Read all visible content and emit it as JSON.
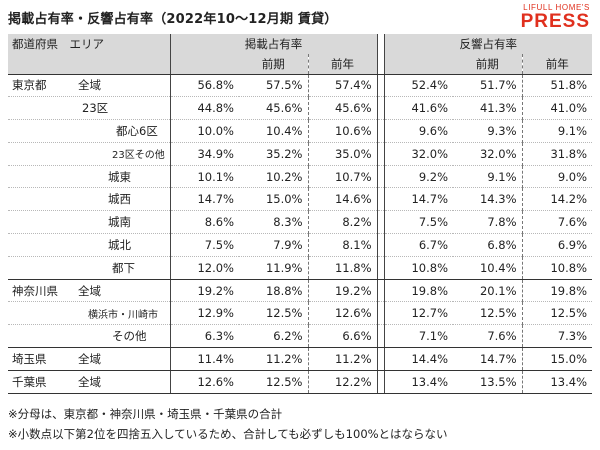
{
  "title": "掲載占有率・反響占有率（2022年10〜12月期 賃貸）",
  "logo": {
    "top": "LIFULL HOME'S",
    "main": "PRESS"
  },
  "header": {
    "pref_area": "都道府県　エリア",
    "listing_group": "掲載占有率",
    "response_group": "反響占有率",
    "sub": [
      "前期",
      "前年",
      "前期",
      "前年"
    ]
  },
  "rows": [
    {
      "pref": "東京都",
      "area": "全域",
      "values": [
        "56.8%",
        "57.5%",
        "57.4%",
        "52.4%",
        "51.7%",
        "51.8%"
      ]
    },
    {
      "pref": "",
      "area": "23区",
      "values": [
        "44.8%",
        "45.6%",
        "45.6%",
        "41.6%",
        "41.3%",
        "41.0%"
      ]
    },
    {
      "pref": "",
      "area": "都心6区",
      "values": [
        "10.0%",
        "10.4%",
        "10.6%",
        "9.6%",
        "9.3%",
        "9.1%"
      ]
    },
    {
      "pref": "",
      "area": "23区その他",
      "values": [
        "34.9%",
        "35.2%",
        "35.0%",
        "32.0%",
        "32.0%",
        "31.8%"
      ]
    },
    {
      "pref": "",
      "area": "城東",
      "values": [
        "10.1%",
        "10.2%",
        "10.7%",
        "9.2%",
        "9.1%",
        "9.0%"
      ]
    },
    {
      "pref": "",
      "area": "城西",
      "values": [
        "14.7%",
        "15.0%",
        "14.6%",
        "14.7%",
        "14.3%",
        "14.2%"
      ]
    },
    {
      "pref": "",
      "area": "城南",
      "values": [
        "8.6%",
        "8.3%",
        "8.2%",
        "7.5%",
        "7.8%",
        "7.6%"
      ]
    },
    {
      "pref": "",
      "area": "城北",
      "values": [
        "7.5%",
        "7.9%",
        "8.1%",
        "6.7%",
        "6.8%",
        "6.9%"
      ]
    },
    {
      "pref": "",
      "area": "都下",
      "values": [
        "12.0%",
        "11.9%",
        "11.8%",
        "10.8%",
        "10.4%",
        "10.8%"
      ]
    },
    {
      "pref": "神奈川県",
      "area": "全域",
      "values": [
        "19.2%",
        "18.8%",
        "19.2%",
        "19.8%",
        "20.1%",
        "19.8%"
      ]
    },
    {
      "pref": "",
      "area": "横浜市・川崎市",
      "values": [
        "12.9%",
        "12.5%",
        "12.6%",
        "12.7%",
        "12.5%",
        "12.5%"
      ]
    },
    {
      "pref": "",
      "area": "その他",
      "values": [
        "6.3%",
        "6.2%",
        "6.6%",
        "7.1%",
        "7.6%",
        "7.3%"
      ]
    },
    {
      "pref": "埼玉県",
      "area": "全域",
      "values": [
        "11.4%",
        "11.2%",
        "11.2%",
        "14.4%",
        "14.7%",
        "15.0%"
      ]
    },
    {
      "pref": "千葉県",
      "area": "全域",
      "values": [
        "12.6%",
        "12.5%",
        "12.2%",
        "13.4%",
        "13.5%",
        "13.4%"
      ]
    }
  ],
  "notes": [
    "※分母は、東京都・神奈川県・埼玉県・千葉県の合計",
    "※小数点以下第2位を四捨五入しているため、合計しても必ずしも100%とはならない"
  ]
}
